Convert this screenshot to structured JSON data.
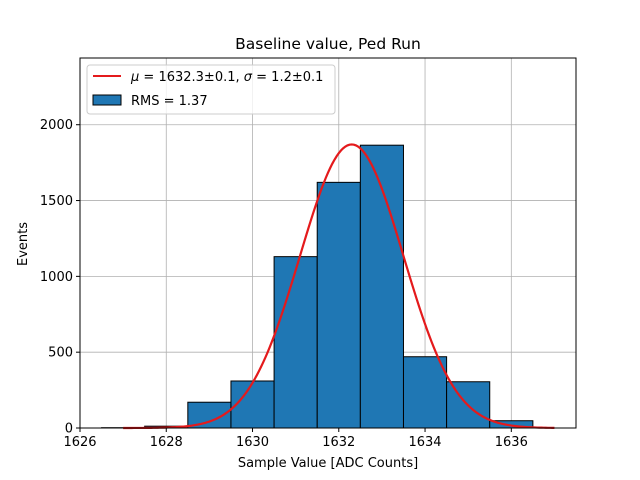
{
  "chart_data": {
    "type": "bar",
    "title": "Baseline value, Ped Run",
    "xlabel": "Sample Value [ADC Counts]",
    "ylabel": "Events",
    "xlim": [
      1626,
      1637.5
    ],
    "ylim": [
      0,
      2440
    ],
    "xticks": [
      1626,
      1628,
      1630,
      1632,
      1634,
      1636
    ],
    "yticks": [
      0,
      500,
      1000,
      1500,
      2000
    ],
    "grid": true,
    "legend_position": "top-left",
    "histogram": {
      "name": "RMS = 1.37",
      "color": "#1f77b4",
      "edgecolor": "#000000",
      "bins": [
        {
          "x0": 1626.5,
          "x1": 1627.5,
          "count": 2
        },
        {
          "x0": 1627.5,
          "x1": 1628.5,
          "count": 12
        },
        {
          "x0": 1628.5,
          "x1": 1629.5,
          "count": 170
        },
        {
          "x0": 1629.5,
          "x1": 1630.5,
          "count": 310
        },
        {
          "x0": 1630.5,
          "x1": 1631.5,
          "count": 1130
        },
        {
          "x0": 1631.5,
          "x1": 1632.5,
          "count": 1620
        },
        {
          "x0": 1632.5,
          "x1": 1633.5,
          "count": 1865
        },
        {
          "x0": 1633.5,
          "x1": 1634.5,
          "count": 470
        },
        {
          "x0": 1634.5,
          "x1": 1635.5,
          "count": 305
        },
        {
          "x0": 1635.5,
          "x1": 1636.5,
          "count": 48
        }
      ]
    },
    "fit": {
      "name": "μ = 1632.3±0.1, σ = 1.2±0.1",
      "legend_mu_symbol": "μ",
      "legend_mu_text": " = 1632.3±0.1, ",
      "legend_sigma_symbol": "σ",
      "legend_sigma_text": " = 1.2±0.1",
      "color": "#e41a1c",
      "type": "gaussian",
      "mu": 1632.3,
      "sigma": 1.2,
      "amplitude": 1870,
      "x_range": [
        1627,
        1637
      ]
    }
  }
}
